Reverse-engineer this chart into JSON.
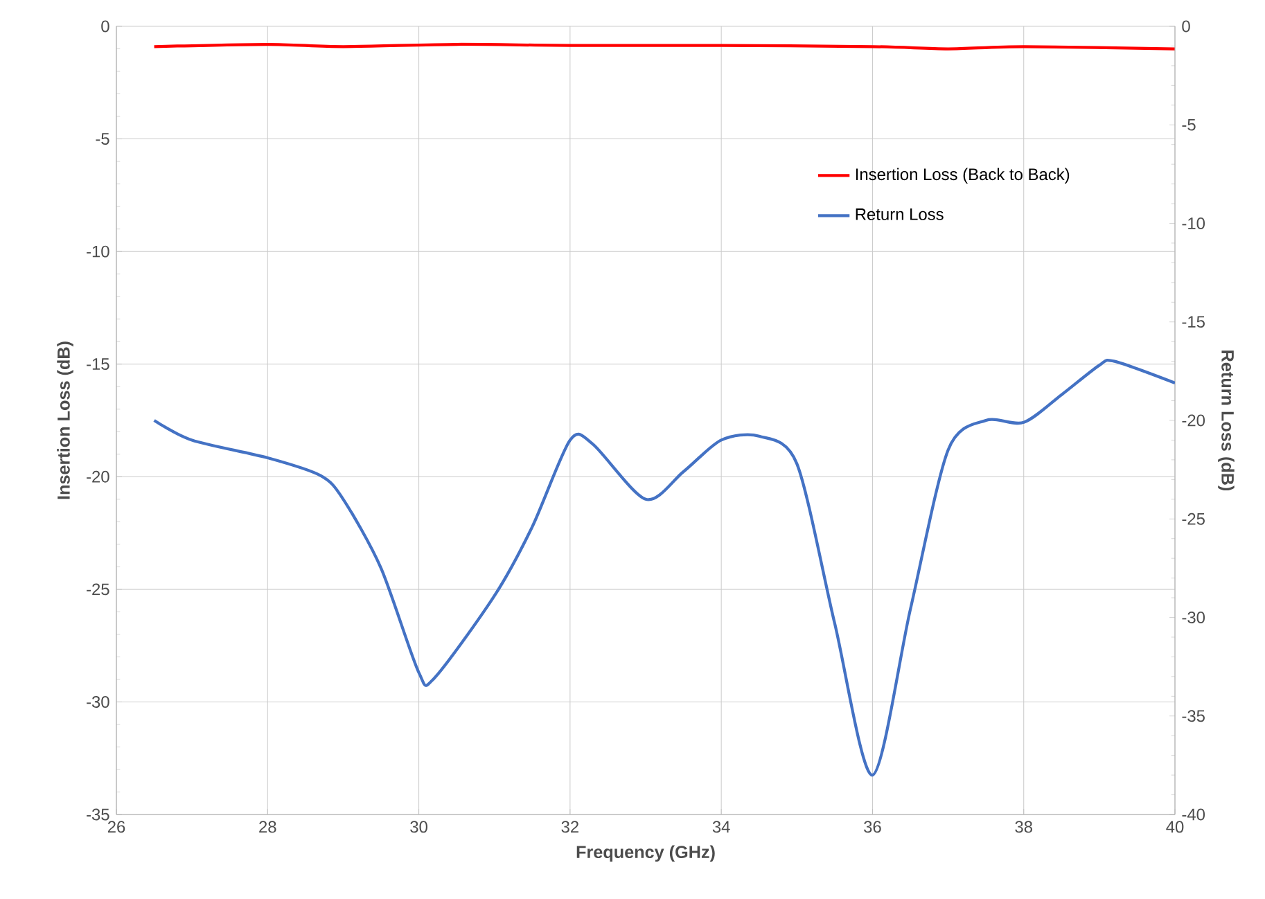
{
  "chart_data": {
    "type": "line",
    "xlabel": "Frequency (GHz)",
    "ylabel": "Insertion Loss (dB)",
    "y2label": "Return Loss (dB)",
    "xlim": [
      26,
      40
    ],
    "xticks": [
      26,
      28,
      30,
      32,
      34,
      36,
      38,
      40
    ],
    "ylim": [
      -35,
      0
    ],
    "yticks": [
      -35,
      -30,
      -25,
      -20,
      -15,
      -10,
      -5,
      0
    ],
    "y2lim": [
      -40,
      0
    ],
    "y2ticks": [
      -40,
      -35,
      -30,
      -25,
      -20,
      -15,
      -10,
      -5,
      0
    ],
    "grid": true,
    "legend": "top right",
    "line_style": "solid",
    "marker": "none",
    "series": [
      {
        "name": "Insertion Loss (Back to Back)",
        "color": "#ff0000",
        "x": [
          26.5,
          28,
          29,
          30.5,
          32,
          34,
          36,
          37,
          38,
          40
        ],
        "values": [
          -0.9,
          -0.8,
          -0.9,
          -0.8,
          -0.85,
          -0.85,
          -0.9,
          -1.0,
          -0.9,
          -1.0
        ]
      },
      {
        "name": "Return Loss",
        "color": "#4472c4",
        "axis": "y2",
        "x": [
          26.5,
          27,
          28,
          28.7,
          29,
          29.5,
          30,
          30.2,
          31,
          31.5,
          32,
          32.3,
          33,
          33.5,
          34,
          34.5,
          35,
          35.5,
          36,
          36.5,
          37,
          37.5,
          38,
          38.5,
          39,
          39.2,
          40
        ],
        "values": [
          -20.0,
          -21.0,
          -21.9,
          -22.8,
          -24.0,
          -27.5,
          -32.8,
          -33.1,
          -28.9,
          -25.4,
          -21.0,
          -21.2,
          -24.0,
          -22.6,
          -21.0,
          -20.8,
          -22.2,
          -30.3,
          -38.0,
          -29.6,
          -21.5,
          -20.0,
          -20.1,
          -18.7,
          -17.2,
          -17.0,
          -18.1
        ]
      }
    ]
  }
}
